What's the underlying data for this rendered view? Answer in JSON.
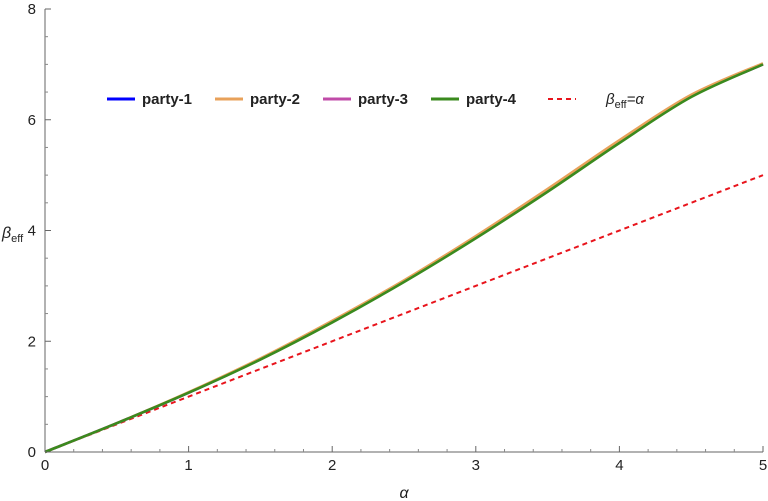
{
  "chart_data": {
    "type": "line",
    "xlabel": "α",
    "ylabel": {
      "main": "β",
      "sub": "eff"
    },
    "xlim": [
      0,
      5
    ],
    "ylim": [
      0,
      8
    ],
    "xticks": [
      "0",
      "1",
      "2",
      "3",
      "4",
      "5"
    ],
    "yticks": [
      "0",
      "2",
      "4",
      "6",
      "8"
    ],
    "grid": false,
    "legend_position": "top",
    "series": [
      {
        "name": "party-1",
        "color": "#0000ff",
        "style": "solid",
        "x": [
          0,
          0.5,
          1,
          1.5,
          2,
          2.5,
          3,
          3.5,
          4,
          4.5,
          5
        ],
        "y": [
          0,
          0.52,
          1.07,
          1.68,
          2.35,
          3.08,
          3.87,
          4.71,
          5.59,
          6.42,
          7.0
        ]
      },
      {
        "name": "party-2",
        "color": "#e8a15a",
        "style": "solid",
        "x": [
          0,
          0.5,
          1,
          1.5,
          2,
          2.5,
          3,
          3.5,
          4,
          4.5,
          5
        ],
        "y": [
          0,
          0.52,
          1.08,
          1.69,
          2.37,
          3.1,
          3.9,
          4.75,
          5.63,
          6.45,
          7.02
        ]
      },
      {
        "name": "party-3",
        "color": "#c04ba8",
        "style": "solid",
        "x": [
          0,
          0.5,
          1,
          1.5,
          2,
          2.5,
          3,
          3.5,
          4,
          4.5,
          5
        ],
        "y": [
          0,
          0.52,
          1.07,
          1.68,
          2.35,
          3.08,
          3.87,
          4.71,
          5.59,
          6.42,
          7.0
        ]
      },
      {
        "name": "party-4",
        "color": "#3a8a1e",
        "style": "solid",
        "x": [
          0,
          0.5,
          1,
          1.5,
          2,
          2.5,
          3,
          3.5,
          4,
          4.5,
          5
        ],
        "y": [
          0,
          0.52,
          1.07,
          1.67,
          2.34,
          3.07,
          3.86,
          4.7,
          5.58,
          6.41,
          7.0
        ]
      },
      {
        "name": "β_eff=α",
        "legend_main": "β",
        "legend_sub": "eff",
        "legend_rest": "=α",
        "color": "#e8141c",
        "style": "dashed",
        "x": [
          0,
          5
        ],
        "y": [
          0,
          5
        ]
      }
    ]
  }
}
